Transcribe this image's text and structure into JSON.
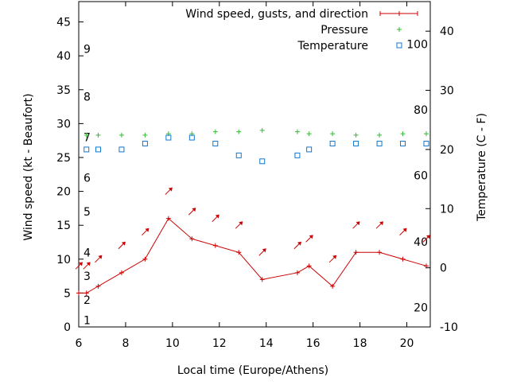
{
  "chart_data": {
    "type": "line",
    "title": "",
    "xlabel": "Local time (Europe/Athens)",
    "ylabel": "Wind speed (kt - Beaufort)",
    "y2label": "Temperature (C - F)",
    "xlim": [
      6,
      21
    ],
    "ylim": [
      0,
      48
    ],
    "y2lim": [
      -10,
      45
    ],
    "x_ticks": [
      "6",
      "8",
      "10",
      "12",
      "14",
      "16",
      "18",
      "20"
    ],
    "y_ticks": [
      "0",
      "5",
      "10",
      "15",
      "20",
      "25",
      "30",
      "35",
      "40",
      "45"
    ],
    "y2_ticks": [
      "-10",
      "0",
      "10",
      "20",
      "30",
      "40"
    ],
    "beaufort_labels": [
      {
        "text": "1",
        "y": 1.0
      },
      {
        "text": "2",
        "y": 4.0
      },
      {
        "text": "3",
        "y": 7.5
      },
      {
        "text": "4",
        "y": 11.0
      },
      {
        "text": "5",
        "y": 17.0
      },
      {
        "text": "6",
        "y": 22.0
      },
      {
        "text": "7",
        "y": 28.0
      },
      {
        "text": "8",
        "y": 34.0
      },
      {
        "text": "9",
        "y": 41.0
      }
    ],
    "fahrenheit_labels": [
      {
        "text": "20",
        "t": -6.7
      },
      {
        "text": "40",
        "t": 4.4
      },
      {
        "text": "60",
        "t": 15.6
      },
      {
        "text": "80",
        "t": 26.7
      },
      {
        "text": "100",
        "t": 37.8
      }
    ],
    "legend": {
      "position": "top-right",
      "entries": [
        "Wind speed, gusts, and direction",
        "Pressure",
        "Temperature"
      ]
    },
    "grid": false,
    "colors": {
      "wind": "#cc0000",
      "pressure": "#33bb33",
      "temperature": "#1177cc"
    },
    "series": [
      {
        "name": "Wind speed, gusts, and direction",
        "x": [
          6.0,
          6.33,
          6.83,
          7.83,
          8.83,
          9.83,
          10.83,
          11.83,
          12.83,
          13.83,
          15.33,
          15.83,
          16.83,
          17.83,
          18.83,
          19.83,
          20.83
        ],
        "values": [
          5,
          5,
          6,
          8,
          10,
          16,
          13,
          12,
          11,
          7,
          8,
          9,
          6,
          11,
          11,
          10,
          9
        ],
        "arrow_y": [
          9,
          9,
          10,
          12,
          14,
          20,
          17,
          16,
          15,
          11,
          12,
          13,
          10,
          15,
          15,
          14,
          13
        ]
      },
      {
        "name": "Pressure",
        "x": [
          6.33,
          6.83,
          7.83,
          8.83,
          9.83,
          10.83,
          11.83,
          12.83,
          13.83,
          15.33,
          15.83,
          16.83,
          17.83,
          18.83,
          19.83,
          20.83
        ],
        "values": [
          28.3,
          28.3,
          28.3,
          28.3,
          28.5,
          28.5,
          28.8,
          28.8,
          29.0,
          28.8,
          28.5,
          28.5,
          28.3,
          28.3,
          28.5,
          28.5
        ]
      },
      {
        "name": "Temperature",
        "x": [
          6.33,
          6.83,
          7.83,
          8.83,
          9.83,
          10.83,
          11.83,
          12.83,
          13.83,
          15.33,
          15.83,
          16.83,
          17.83,
          18.83,
          19.83,
          20.83
        ],
        "values": [
          20,
          20,
          20,
          21,
          22,
          22,
          21,
          19,
          18,
          19,
          20,
          21,
          21,
          21,
          21,
          21
        ]
      }
    ]
  }
}
